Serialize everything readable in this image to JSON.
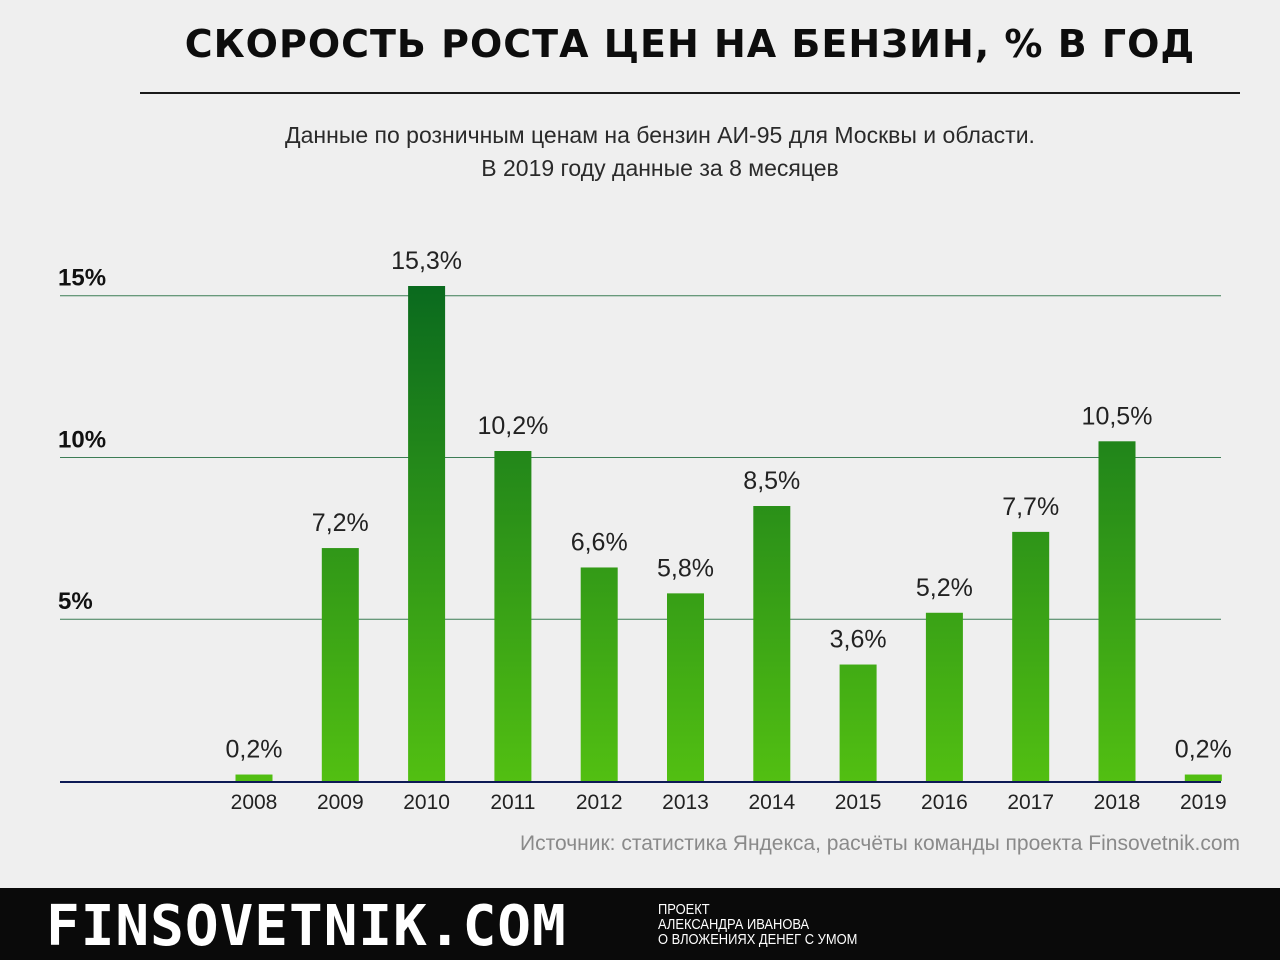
{
  "chart_data": {
    "type": "bar",
    "title": "СКОРОСТЬ РОСТА ЦЕН НА БЕНЗИН, % В ГОД",
    "subtitle": [
      "Данные по розничным ценам на бензин АИ-95 для Москвы и области.",
      "В 2019 году данные за 8 месяцев"
    ],
    "categories": [
      "2008",
      "2009",
      "2010",
      "2011",
      "2012",
      "2013",
      "2014",
      "2015",
      "2016",
      "2017",
      "2018",
      "2019"
    ],
    "values": [
      0.2,
      7.2,
      15.3,
      10.2,
      6.6,
      5.8,
      8.5,
      3.6,
      5.2,
      7.7,
      10.5,
      0.2
    ],
    "value_labels": [
      "0,2%",
      "7,2%",
      "15,3%",
      "10,2%",
      "6,6%",
      "5,8%",
      "8,5%",
      "3,6%",
      "5,2%",
      "7,7%",
      "10,5%",
      "0,2%"
    ],
    "yticks": [
      5,
      10,
      15
    ],
    "ytick_labels": [
      "5%",
      "10%",
      "15%"
    ],
    "ylim": [
      0,
      15.3
    ],
    "grid": true,
    "xlabel": "",
    "ylabel": "",
    "colors": {
      "bar_top": "#0a6a1e",
      "bar_bottom": "#52bf12",
      "gridline": "#3c7d55",
      "axis": "#0d1a55"
    }
  },
  "source": "Источник: статистика Яндекса, расчёты команды проекта Finsovetnik.com",
  "footer": {
    "brand": "FINSOVETNIK.COM",
    "project_lines": [
      "ПРОЕКТ",
      "АЛЕКСАНДРА ИВАНОВА",
      "О ВЛОЖЕНИЯХ ДЕНЕГ С УМОМ"
    ]
  }
}
